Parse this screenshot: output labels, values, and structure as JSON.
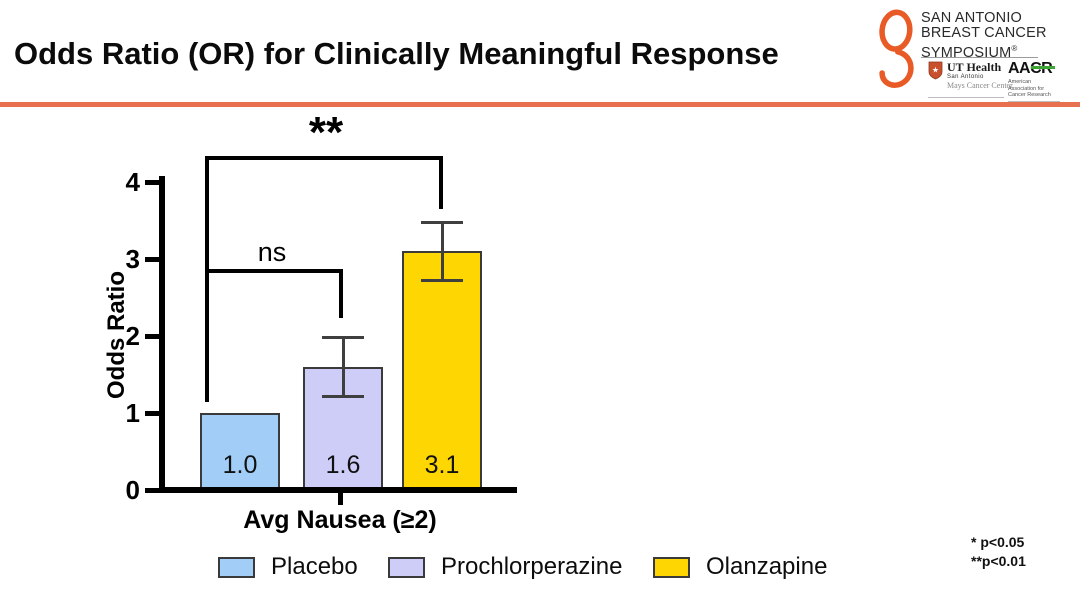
{
  "slide": {
    "title": "Odds Ratio (OR) for Clinically Meaningful Response"
  },
  "logo": {
    "lines": [
      "SAN ANTONIO",
      "BREAST CANCER",
      "SYMPOSIUM"
    ],
    "registered": "®",
    "ribbon_color": "#E85B27",
    "ut_health": {
      "name": "UT Health",
      "sub1": "San Antonio",
      "sub2": "Mays Cancer Center"
    },
    "aacr": {
      "name": "AACR",
      "sub": "American Association for Cancer Research",
      "accent_color": "#3FA535"
    }
  },
  "chart_data": {
    "type": "bar",
    "title": "",
    "xlabel": "Avg Nausea (≥2)",
    "ylabel": "Odds Ratio",
    "ylim": [
      0,
      4
    ],
    "yticks": [
      0,
      1,
      2,
      3,
      4
    ],
    "grid": false,
    "legend_position": "bottom",
    "categories": [
      "Placebo",
      "Prochlorperazine",
      "Olanzapine"
    ],
    "values": [
      1.0,
      1.6,
      3.1
    ],
    "value_labels": [
      "1.0",
      "1.6",
      "3.1"
    ],
    "error_bars": [
      null,
      {
        "low": 1.2,
        "high": 2.0
      },
      {
        "low": 2.7,
        "high": 3.5
      }
    ],
    "bar_colors": [
      "#A1CDF6",
      "#CDCDF7",
      "#FED702"
    ],
    "significance": [
      {
        "comparison": "Placebo vs Prochlorperazine",
        "label": "ns"
      },
      {
        "comparison": "Placebo vs Olanzapine",
        "label": "**"
      }
    ]
  },
  "footnotes": {
    "line1": "* p<0.05",
    "line2": "**p<0.01"
  }
}
